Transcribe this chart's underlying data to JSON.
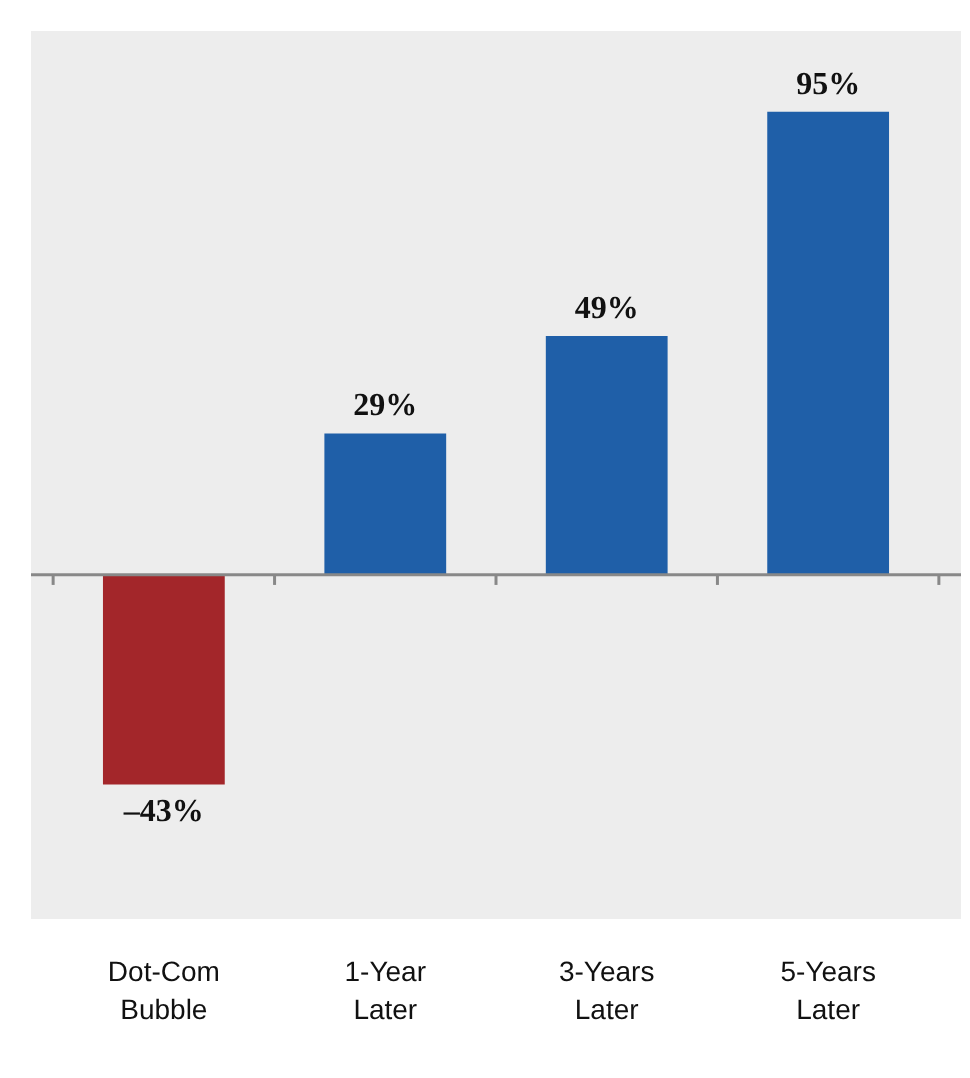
{
  "chart_data": {
    "type": "bar",
    "categories": [
      "Dot-Com\nBubble",
      "1-Year\nLater",
      "3-Years\nLater",
      "5-Years\nLater"
    ],
    "values": [
      -43,
      29,
      49,
      95
    ],
    "colors": [
      "#a3262a",
      "#1f5fa8",
      "#1f5fa8",
      "#1f5fa8"
    ],
    "value_labels": [
      "–43%",
      "29%",
      "49%",
      "95%"
    ]
  }
}
